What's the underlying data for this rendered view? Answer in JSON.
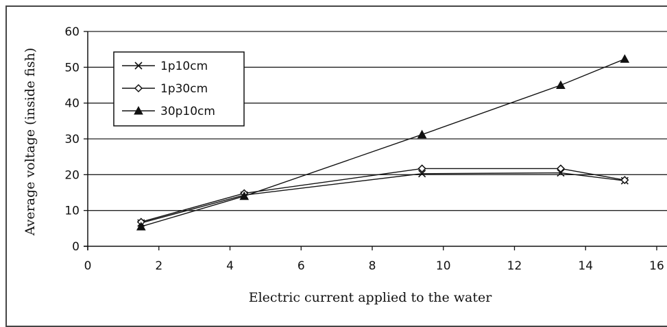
{
  "chart_data": {
    "type": "line",
    "xlabel": "Electric current applied to the water",
    "ylabel": "Average voltage (inside fish)",
    "xlim": [
      0,
      16
    ],
    "ylim": [
      0,
      60
    ],
    "x_ticks": [
      0,
      2,
      4,
      6,
      8,
      10,
      12,
      14,
      16
    ],
    "y_ticks": [
      0,
      10,
      20,
      30,
      40,
      50,
      60
    ],
    "grid": "horizontal",
    "legend": "top-left",
    "series": [
      {
        "name": "1p10cm",
        "marker": "x",
        "x": [
          1.5,
          4.4,
          9.4,
          13.3,
          15.1
        ],
        "y": [
          6.5,
          14.3,
          20.3,
          20.5,
          18.3
        ]
      },
      {
        "name": "1p30cm",
        "marker": "diamond-open",
        "x": [
          1.5,
          4.4,
          9.4,
          13.3,
          15.1
        ],
        "y": [
          6.8,
          14.8,
          21.7,
          21.7,
          18.5
        ]
      },
      {
        "name": "30p10cm",
        "marker": "triangle-filled",
        "x": [
          1.5,
          4.4,
          9.4,
          13.3,
          15.1
        ],
        "y": [
          5.5,
          14.0,
          31.2,
          45.0,
          52.3
        ]
      }
    ]
  }
}
